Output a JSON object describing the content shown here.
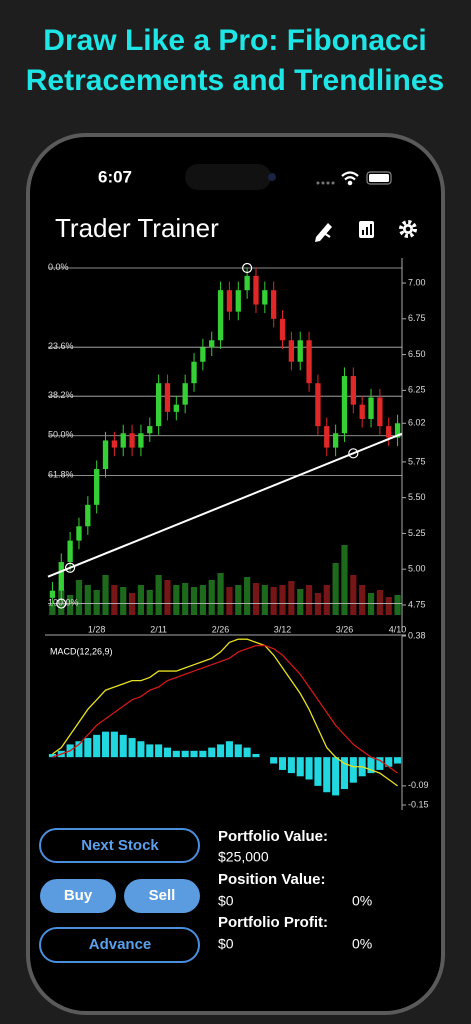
{
  "header": {
    "title_lines": [
      "Draw Like a Pro: Fibonacci",
      "Retracements and Trendlines"
    ]
  },
  "status_bar": {
    "time": "6:07"
  },
  "app": {
    "title": "Trader Trainer"
  },
  "chart_data": {
    "type": "candlestick",
    "categories": [
      null,
      null,
      null,
      null,
      null,
      "1/28",
      null,
      null,
      null,
      null,
      null,
      null,
      "2/11",
      null,
      null,
      null,
      null,
      null,
      null,
      "2/26",
      null,
      null,
      null,
      null,
      null,
      null,
      "3/12",
      null,
      null,
      null,
      null,
      null,
      null,
      "3/26",
      null,
      null,
      null,
      null,
      null,
      "4/10"
    ],
    "open": [
      4.8,
      4.85,
      5.05,
      5.2,
      5.3,
      5.45,
      5.7,
      5.9,
      5.85,
      5.95,
      5.85,
      5.95,
      6.0,
      6.3,
      6.1,
      6.15,
      6.3,
      6.45,
      6.55,
      6.6,
      6.95,
      6.8,
      6.95,
      7.05,
      6.85,
      6.95,
      6.75,
      6.6,
      6.45,
      6.6,
      6.3,
      6.0,
      5.85,
      5.95,
      6.35,
      6.15,
      6.05,
      6.2,
      6.0,
      5.92
    ],
    "high": [
      4.91,
      5.11,
      5.26,
      5.36,
      5.51,
      5.76,
      5.96,
      5.96,
      6.01,
      6.01,
      6.01,
      6.06,
      6.36,
      6.36,
      6.21,
      6.36,
      6.51,
      6.61,
      6.66,
      7.01,
      7.01,
      7.01,
      7.11,
      7.11,
      7.01,
      7.01,
      6.81,
      6.66,
      6.66,
      6.66,
      6.36,
      6.06,
      6.01,
      6.41,
      6.41,
      6.21,
      6.26,
      6.26,
      6.06,
      6.08
    ],
    "low": [
      4.74,
      4.79,
      4.99,
      5.14,
      5.24,
      5.39,
      5.64,
      5.79,
      5.79,
      5.79,
      5.79,
      5.89,
      5.94,
      6.04,
      6.04,
      6.09,
      6.24,
      6.39,
      6.49,
      6.54,
      6.74,
      6.74,
      6.89,
      6.79,
      6.79,
      6.69,
      6.54,
      6.39,
      6.39,
      6.24,
      5.94,
      5.79,
      5.79,
      5.89,
      6.09,
      5.99,
      5.99,
      5.94,
      5.86,
      5.86
    ],
    "close": [
      4.85,
      5.05,
      5.2,
      5.3,
      5.45,
      5.7,
      5.9,
      5.85,
      5.95,
      5.85,
      5.95,
      6.0,
      6.3,
      6.1,
      6.15,
      6.3,
      6.45,
      6.55,
      6.6,
      6.95,
      6.8,
      6.95,
      7.05,
      6.85,
      6.95,
      6.75,
      6.6,
      6.45,
      6.6,
      6.3,
      6.0,
      5.85,
      5.95,
      6.35,
      6.15,
      6.05,
      6.2,
      6.0,
      5.92,
      6.02
    ],
    "up_color": "#35d035",
    "down_color": "#e02828",
    "ylim": [
      4.68,
      7.175
    ],
    "yticks": [
      {
        "value": 7,
        "label": "7.00"
      },
      6.75,
      {
        "value": 6.5,
        "label": "6.50"
      },
      6.25,
      6.02,
      5.75,
      {
        "value": 5.5,
        "label": "5.50"
      },
      5.25,
      {
        "value": 5,
        "label": "5.00"
      },
      4.75
    ],
    "fib_high": {
      "index": 22,
      "price": 7.105
    },
    "fib_low": {
      "index": 1,
      "price": 4.76
    },
    "fib_levels": [
      {
        "value": 0,
        "label": "0.0%"
      },
      {
        "value": 23.6,
        "label": "23.6%"
      },
      {
        "value": 38.2,
        "label": "38.2%"
      },
      {
        "value": 50,
        "label": "50.0%"
      },
      {
        "value": 61.8,
        "label": "61.8%"
      },
      {
        "value": 100,
        "label": "100.0%"
      }
    ],
    "trendline": [
      {
        "index": 2,
        "price": 5.01
      },
      {
        "index": 34,
        "price": 5.81
      }
    ],
    "volume": {
      "ylim": [
        0,
        100
      ],
      "up_color": "#1d6a1d",
      "down_color": "#761616",
      "values": [
        10,
        25,
        20,
        35,
        30,
        25,
        40,
        30,
        28,
        22,
        30,
        25,
        40,
        35,
        30,
        32,
        28,
        30,
        35,
        42,
        28,
        30,
        38,
        32,
        30,
        28,
        30,
        34,
        26,
        30,
        22,
        30,
        52,
        70,
        40,
        30,
        22,
        25,
        18,
        20
      ]
    },
    "macd": {
      "label": "MACD(12,26,9)",
      "ylim": [
        -0.15,
        0.38
      ],
      "yticks": [
        0.38,
        -0.09,
        -0.15
      ],
      "series": [
        {
          "color": "#e8e020",
          "values": [
            0.01,
            0.03,
            0.07,
            0.11,
            0.15,
            0.18,
            0.21,
            0.22,
            0.23,
            0.24,
            0.24,
            0.25,
            0.27,
            0.27,
            0.27,
            0.28,
            0.29,
            0.3,
            0.31,
            0.33,
            0.36,
            0.37,
            0.37,
            0.36,
            0.35,
            0.32,
            0.28,
            0.24,
            0.2,
            0.15,
            0.09,
            0.03,
            0.0,
            -0.02,
            -0.03,
            -0.03,
            -0.04,
            -0.05,
            -0.07,
            -0.09
          ]
        },
        {
          "color": "#d01818",
          "values": [
            0.0,
            0.01,
            0.02,
            0.04,
            0.07,
            0.1,
            0.12,
            0.14,
            0.16,
            0.18,
            0.19,
            0.21,
            0.22,
            0.24,
            0.25,
            0.26,
            0.27,
            0.28,
            0.29,
            0.3,
            0.31,
            0.33,
            0.34,
            0.35,
            0.35,
            0.34,
            0.32,
            0.29,
            0.26,
            0.22,
            0.18,
            0.14,
            0.1,
            0.07,
            0.04,
            0.02,
            0.0,
            -0.01,
            -0.03,
            -0.05
          ]
        }
      ],
      "histogram": {
        "color": "#22d8e0",
        "values": [
          0.01,
          0.02,
          0.04,
          0.05,
          0.06,
          0.07,
          0.08,
          0.08,
          0.07,
          0.06,
          0.05,
          0.04,
          0.04,
          0.03,
          0.02,
          0.02,
          0.02,
          0.02,
          0.03,
          0.04,
          0.05,
          0.04,
          0.03,
          0.01,
          0.0,
          -0.02,
          -0.04,
          -0.05,
          -0.06,
          -0.07,
          -0.09,
          -0.11,
          -0.12,
          -0.1,
          -0.08,
          -0.06,
          -0.05,
          -0.04,
          -0.03,
          -0.02
        ]
      }
    }
  },
  "controls": {
    "next": "Next Stock",
    "buy": "Buy",
    "sell": "Sell",
    "advance": "Advance"
  },
  "portfolio": {
    "value_label": "Portfolio Value:",
    "value": "$25,000",
    "position_label": "Position Value:",
    "position_value": "$0",
    "position_pct": "0%",
    "profit_label": "Portfolio Profit:",
    "profit_value": "$0",
    "profit_pct": "0%"
  }
}
